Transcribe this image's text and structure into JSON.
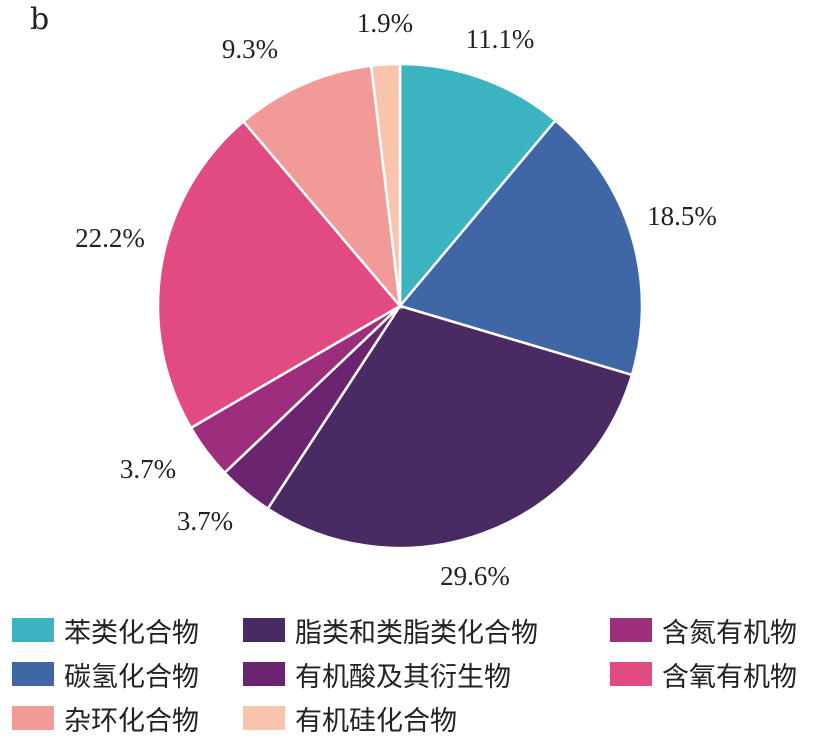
{
  "panel_label": "b",
  "chart_data": {
    "type": "pie",
    "title": "",
    "start_angle_deg": 0,
    "direction": "clockwise",
    "slices": [
      {
        "name": "苯类化合物",
        "label": "11.1%",
        "value": 11.1,
        "color": "#3bb3c0"
      },
      {
        "name": "碳氢化合物",
        "label": "18.5%",
        "value": 18.5,
        "color": "#3f67a6"
      },
      {
        "name": "脂类和类脂类化合物",
        "label": "29.6%",
        "value": 29.6,
        "color": "#4a2a62"
      },
      {
        "name": "有机酸及其衍生物",
        "label": "3.7%",
        "value": 3.7,
        "color": "#6b2570"
      },
      {
        "name": "含氮有机物",
        "label": "3.7%",
        "value": 3.7,
        "color": "#9c2e7d"
      },
      {
        "name": "含氧有机物",
        "label": "22.2%",
        "value": 22.2,
        "color": "#e24a82"
      },
      {
        "name": "杂环化合物",
        "label": "9.3%",
        "value": 9.3,
        "color": "#f29a98"
      },
      {
        "name": "有机硅化合物",
        "label": "1.9%",
        "value": 1.9,
        "color": "#f8c4ac"
      }
    ],
    "legend_position": "bottom"
  }
}
